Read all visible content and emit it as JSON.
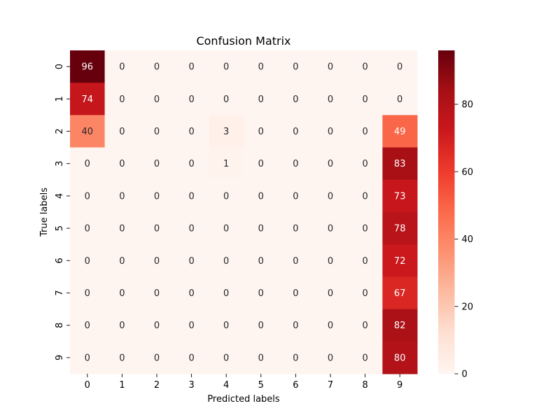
{
  "chart_data": {
    "type": "heatmap",
    "title": "Confusion Matrix",
    "xlabel": "Predicted labels",
    "ylabel": "True labels",
    "x_categories": [
      "0",
      "1",
      "2",
      "3",
      "4",
      "5",
      "6",
      "7",
      "8",
      "9"
    ],
    "y_categories": [
      "0",
      "1",
      "2",
      "3",
      "4",
      "5",
      "6",
      "7",
      "8",
      "9"
    ],
    "values": [
      [
        96,
        0,
        0,
        0,
        0,
        0,
        0,
        0,
        0,
        0
      ],
      [
        74,
        0,
        0,
        0,
        0,
        0,
        0,
        0,
        0,
        0
      ],
      [
        40,
        0,
        0,
        0,
        3,
        0,
        0,
        0,
        0,
        49
      ],
      [
        0,
        0,
        0,
        0,
        1,
        0,
        0,
        0,
        0,
        83
      ],
      [
        0,
        0,
        0,
        0,
        0,
        0,
        0,
        0,
        0,
        73
      ],
      [
        0,
        0,
        0,
        0,
        0,
        0,
        0,
        0,
        0,
        78
      ],
      [
        0,
        0,
        0,
        0,
        0,
        0,
        0,
        0,
        0,
        72
      ],
      [
        0,
        0,
        0,
        0,
        0,
        0,
        0,
        0,
        0,
        67
      ],
      [
        0,
        0,
        0,
        0,
        0,
        0,
        0,
        0,
        0,
        82
      ],
      [
        0,
        0,
        0,
        0,
        0,
        0,
        0,
        0,
        0,
        80
      ]
    ],
    "colormap": "Reds",
    "color_range": [
      0,
      96
    ],
    "colorbar_ticks": [
      0,
      20,
      40,
      60,
      80
    ],
    "annotations": true,
    "grid": false,
    "colors": {
      "colormap_low": "#fff5f0",
      "colormap_high": "#67000d",
      "text_dark": "#262626",
      "text_light": "#ffffff",
      "axis": "#000000"
    }
  }
}
